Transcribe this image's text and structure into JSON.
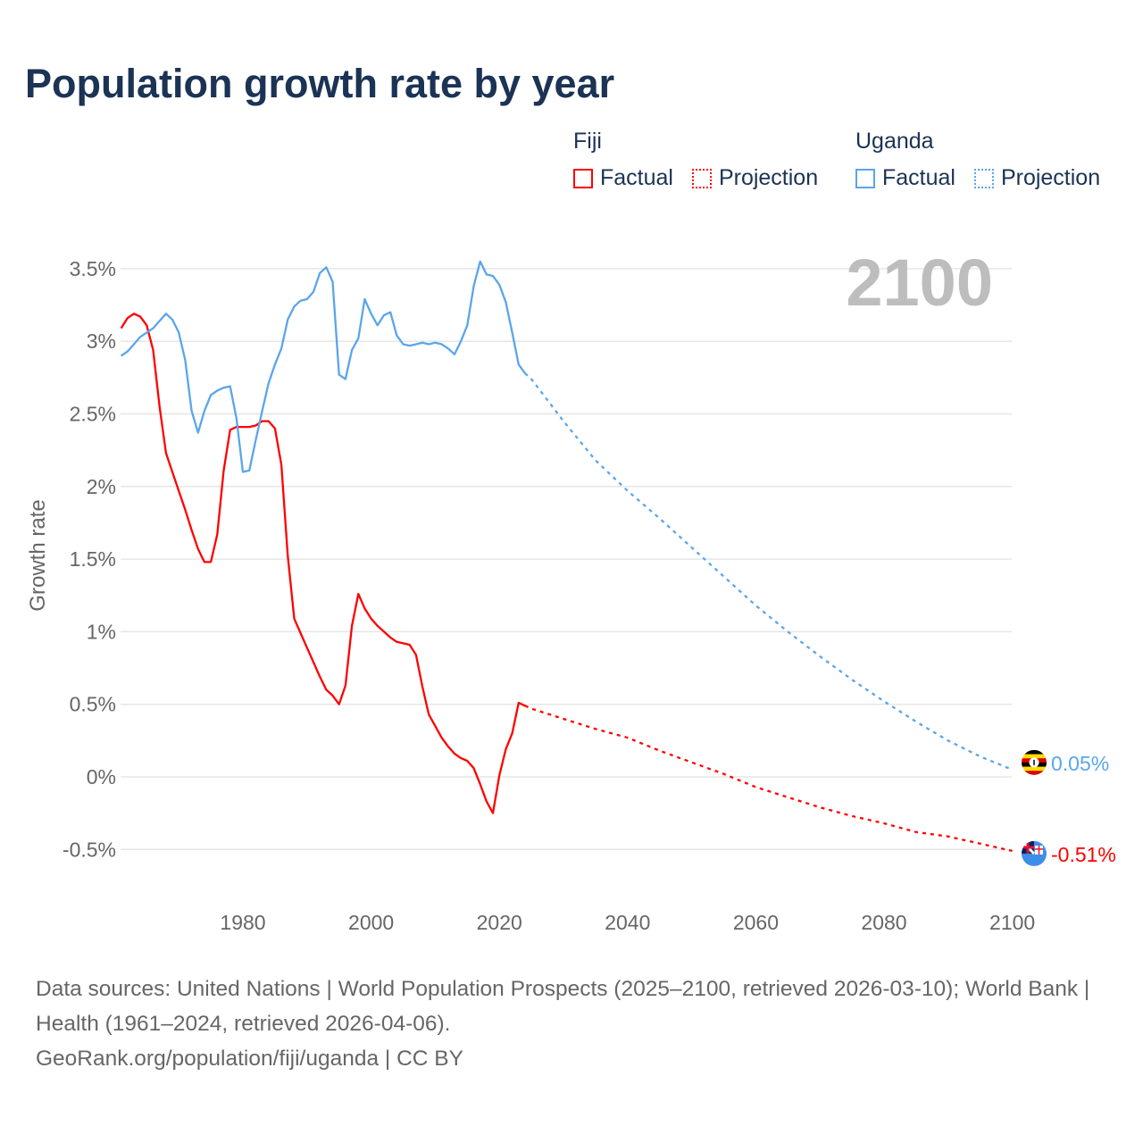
{
  "title": "Population growth rate by year",
  "legend": {
    "groups": [
      {
        "name": "Fiji",
        "color": "#ff0000",
        "factual": "Factual",
        "projection": "Projection"
      },
      {
        "name": "Uganda",
        "color": "#5aa5ec",
        "factual": "Factual",
        "projection": "Projection"
      }
    ]
  },
  "year_watermark": "2100",
  "footer": {
    "sources": "Data sources: United Nations | World Population Prospects (2025–2100, retrieved 2026-03-10); World Bank | Health (1961–2024, retrieved 2026-04-06).",
    "credit": "GeoRank.org/population/fiji/uganda | CC BY"
  },
  "chart_data": {
    "type": "line",
    "title": "Population growth rate by year",
    "xlabel": "",
    "ylabel": "Growth rate",
    "xlim": [
      1961,
      2100
    ],
    "ylim": [
      -0.75,
      3.75
    ],
    "x_ticks": [
      1980,
      2000,
      2020,
      2040,
      2060,
      2080,
      2100
    ],
    "y_ticks": [
      -0.5,
      0,
      0.5,
      1,
      1.5,
      2,
      2.5,
      3,
      3.5
    ],
    "y_tick_labels": [
      "-0.5%",
      "0%",
      "0.5%",
      "1%",
      "1.5%",
      "2%",
      "2.5%",
      "3%",
      "3.5%"
    ],
    "x_tick_labels": [
      "1980",
      "2000",
      "2020",
      "2040",
      "2060",
      "2080",
      "2100"
    ],
    "grid": true,
    "legend_position": "top-right",
    "series": [
      {
        "name": "Fiji",
        "color": "#ff0000",
        "end_label": "-0.51%",
        "factual": {
          "x": [
            1961,
            1962,
            1963,
            1964,
            1965,
            1966,
            1967,
            1968,
            1969,
            1970,
            1971,
            1972,
            1973,
            1974,
            1975,
            1976,
            1977,
            1978,
            1979,
            1980,
            1981,
            1982,
            1983,
            1984,
            1985,
            1986,
            1987,
            1988,
            1989,
            1990,
            1991,
            1992,
            1993,
            1994,
            1995,
            1996,
            1997,
            1998,
            1999,
            2000,
            2001,
            2002,
            2003,
            2004,
            2005,
            2006,
            2007,
            2008,
            2009,
            2010,
            2011,
            2012,
            2013,
            2014,
            2015,
            2016,
            2017,
            2018,
            2019,
            2020,
            2021,
            2022,
            2023,
            2024
          ],
          "y": [
            3.09,
            3.16,
            3.19,
            3.17,
            3.11,
            2.94,
            2.55,
            2.23,
            2.1,
            1.97,
            1.84,
            1.7,
            1.57,
            1.48,
            1.48,
            1.67,
            2.11,
            2.39,
            2.41,
            2.41,
            2.41,
            2.42,
            2.45,
            2.45,
            2.4,
            2.15,
            1.52,
            1.09,
            0.99,
            0.89,
            0.79,
            0.69,
            0.6,
            0.56,
            0.5,
            0.63,
            1.04,
            1.26,
            1.16,
            1.09,
            1.04,
            1.0,
            0.96,
            0.93,
            0.92,
            0.91,
            0.84,
            0.62,
            0.43,
            0.35,
            0.27,
            0.21,
            0.16,
            0.13,
            0.11,
            0.06,
            -0.05,
            -0.17,
            -0.25,
            0.01,
            0.19,
            0.3,
            0.51,
            0.49
          ]
        },
        "projection": {
          "x": [
            2024,
            2025,
            2030,
            2035,
            2040,
            2045,
            2050,
            2055,
            2060,
            2065,
            2070,
            2075,
            2080,
            2085,
            2090,
            2095,
            2100
          ],
          "y": [
            0.49,
            0.47,
            0.4,
            0.33,
            0.27,
            0.18,
            0.1,
            0.02,
            -0.07,
            -0.14,
            -0.21,
            -0.27,
            -0.32,
            -0.38,
            -0.41,
            -0.46,
            -0.51
          ]
        }
      },
      {
        "name": "Uganda",
        "color": "#5aa5ec",
        "end_label": "0.05%",
        "factual": {
          "x": [
            1961,
            1962,
            1963,
            1964,
            1965,
            1966,
            1967,
            1968,
            1969,
            1970,
            1971,
            1972,
            1973,
            1974,
            1975,
            1976,
            1977,
            1978,
            1979,
            1980,
            1981,
            1982,
            1983,
            1984,
            1985,
            1986,
            1987,
            1988,
            1989,
            1990,
            1991,
            1992,
            1993,
            1994,
            1995,
            1996,
            1997,
            1998,
            1999,
            2000,
            2001,
            2002,
            2003,
            2004,
            2005,
            2006,
            2007,
            2008,
            2009,
            2010,
            2011,
            2012,
            2013,
            2014,
            2015,
            2016,
            2017,
            2018,
            2019,
            2020,
            2021,
            2022,
            2023,
            2024
          ],
          "y": [
            2.9,
            2.93,
            2.98,
            3.03,
            3.06,
            3.09,
            3.14,
            3.19,
            3.15,
            3.06,
            2.87,
            2.52,
            2.37,
            2.52,
            2.63,
            2.66,
            2.68,
            2.69,
            2.47,
            2.1,
            2.11,
            2.32,
            2.52,
            2.71,
            2.84,
            2.95,
            3.15,
            3.24,
            3.28,
            3.29,
            3.34,
            3.47,
            3.51,
            3.41,
            2.77,
            2.74,
            2.94,
            3.02,
            3.29,
            3.19,
            3.11,
            3.18,
            3.2,
            3.04,
            2.98,
            2.97,
            2.98,
            2.99,
            2.98,
            2.99,
            2.98,
            2.95,
            2.91,
            3.0,
            3.11,
            3.38,
            3.55,
            3.46,
            3.45,
            3.39,
            3.27,
            3.06,
            2.84,
            2.78
          ]
        },
        "projection": {
          "x": [
            2024,
            2025,
            2030,
            2035,
            2040,
            2045,
            2050,
            2055,
            2060,
            2065,
            2070,
            2075,
            2080,
            2085,
            2090,
            2095,
            2100
          ],
          "y": [
            2.78,
            2.74,
            2.45,
            2.18,
            1.97,
            1.78,
            1.58,
            1.38,
            1.18,
            1.0,
            0.83,
            0.67,
            0.52,
            0.38,
            0.25,
            0.14,
            0.05
          ]
        }
      }
    ]
  }
}
